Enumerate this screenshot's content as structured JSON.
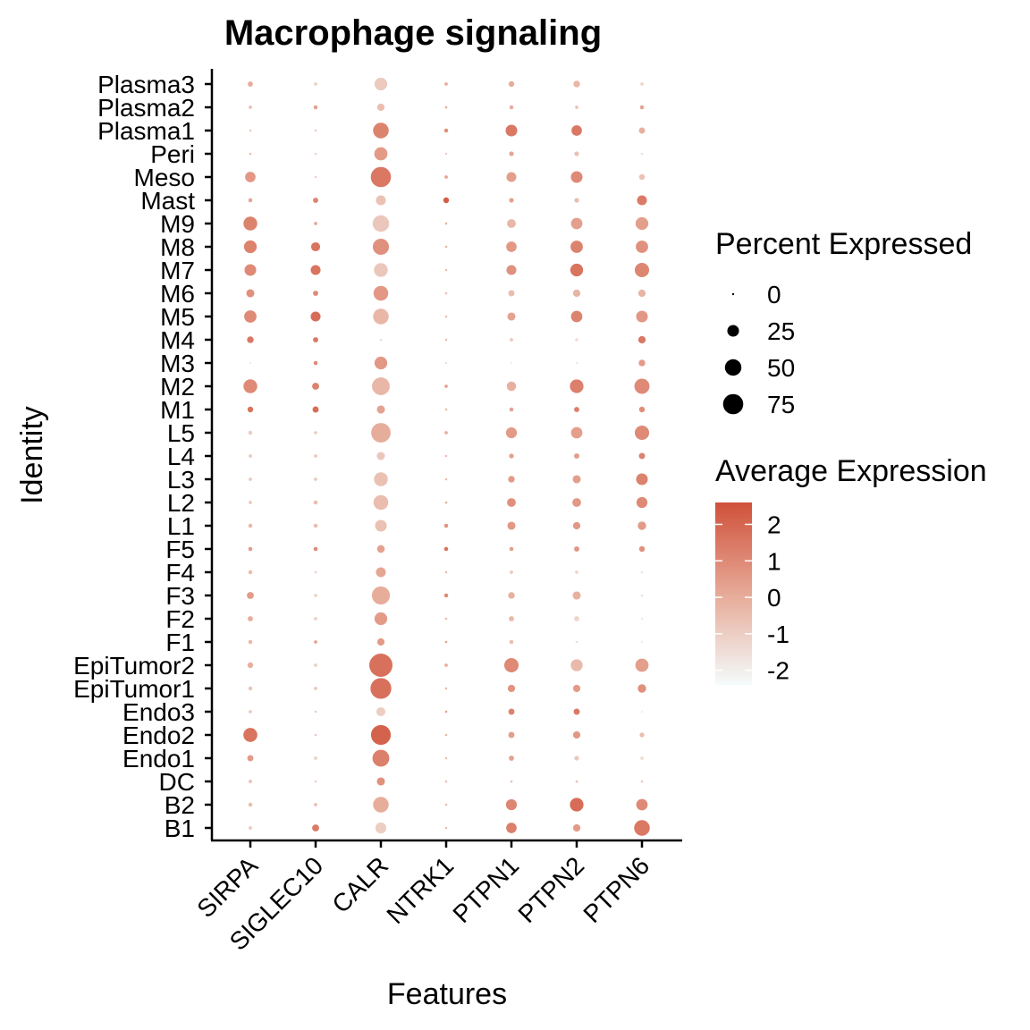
{
  "chart_data": {
    "type": "dotplot",
    "title": "Macrophage signaling",
    "xlabel": "Features",
    "ylabel": "Identity",
    "features": [
      "SIRPA",
      "SIGLEC10",
      "CALR",
      "NTRK1",
      "PTPN1",
      "PTPN2",
      "PTPN6"
    ],
    "identities": [
      "Plasma3",
      "Plasma2",
      "Plasma1",
      "Peri",
      "Meso",
      "Mast",
      "M9",
      "M8",
      "M7",
      "M6",
      "M5",
      "M4",
      "M3",
      "M2",
      "M1",
      "L5",
      "L4",
      "L3",
      "L2",
      "L1",
      "F5",
      "F4",
      "F3",
      "F2",
      "F1",
      "EpiTumor2",
      "EpiTumor1",
      "Endo3",
      "Endo2",
      "Endo1",
      "DC",
      "B2",
      "B1"
    ],
    "percent_expressed": [
      [
        5,
        2,
        30,
        2,
        6,
        8,
        2
      ],
      [
        2,
        3,
        10,
        1,
        3,
        2,
        3
      ],
      [
        1,
        1,
        45,
        3,
        25,
        20,
        7
      ],
      [
        1,
        1,
        32,
        0,
        4,
        4,
        1
      ],
      [
        20,
        1,
        75,
        2,
        18,
        25,
        6
      ],
      [
        3,
        5,
        18,
        6,
        4,
        4,
        18
      ],
      [
        35,
        2,
        50,
        1,
        14,
        24,
        30
      ],
      [
        30,
        15,
        48,
        1,
        20,
        28,
        28
      ],
      [
        25,
        18,
        35,
        1,
        18,
        30,
        38
      ],
      [
        12,
        5,
        40,
        1,
        7,
        10,
        10
      ],
      [
        28,
        18,
        45,
        1,
        12,
        24,
        25
      ],
      [
        8,
        5,
        1,
        1,
        2,
        2,
        10
      ],
      [
        1,
        3,
        30,
        0,
        0,
        1,
        8
      ],
      [
        35,
        9,
        58,
        2,
        16,
        34,
        42
      ],
      [
        6,
        7,
        12,
        1,
        3,
        5,
        6
      ],
      [
        3,
        2,
        70,
        2,
        22,
        24,
        38
      ],
      [
        2,
        2,
        12,
        1,
        4,
        5,
        7
      ],
      [
        2,
        2,
        35,
        1,
        8,
        12,
        25
      ],
      [
        2,
        3,
        40,
        1,
        14,
        14,
        22
      ],
      [
        3,
        3,
        25,
        3,
        12,
        10,
        13
      ],
      [
        3,
        3,
        11,
        3,
        3,
        5,
        6
      ],
      [
        3,
        1,
        18,
        1,
        2,
        2,
        1
      ],
      [
        9,
        2,
        60,
        3,
        8,
        12,
        1
      ],
      [
        5,
        2,
        30,
        1,
        5,
        5,
        1
      ],
      [
        3,
        2,
        10,
        1,
        3,
        1,
        1
      ],
      [
        6,
        2,
        99,
        2,
        38,
        26,
        32
      ],
      [
        3,
        2,
        80,
        1,
        10,
        10,
        13
      ],
      [
        2,
        1,
        15,
        1,
        7,
        7,
        1
      ],
      [
        36,
        1,
        72,
        1,
        7,
        10,
        4
      ],
      [
        7,
        2,
        52,
        1,
        5,
        4,
        2
      ],
      [
        2,
        1,
        12,
        1,
        1,
        1,
        1
      ],
      [
        3,
        2,
        45,
        1,
        22,
        34,
        24
      ],
      [
        2,
        9,
        22,
        1,
        20,
        10,
        45
      ]
    ],
    "average_expression": [
      [
        0.0,
        -1.0,
        -0.9,
        0.0,
        0.0,
        -0.3,
        -1.2
      ],
      [
        -0.5,
        0.3,
        -0.5,
        0.2,
        0.0,
        -0.6,
        0.3
      ],
      [
        -0.8,
        -0.8,
        1.2,
        0.8,
        1.5,
        1.5,
        -0.1
      ],
      [
        -0.5,
        -1.0,
        0.5,
        -1.0,
        0.2,
        -0.6,
        -1.5
      ],
      [
        0.6,
        -1.0,
        1.5,
        0.3,
        0.4,
        1.0,
        -0.6
      ],
      [
        0.2,
        1.2,
        -0.6,
        2.3,
        0.3,
        -0.5,
        1.4
      ],
      [
        1.2,
        0.2,
        -0.8,
        -0.2,
        -0.3,
        0.4,
        0.4
      ],
      [
        1.2,
        1.6,
        0.8,
        -0.2,
        0.6,
        1.2,
        0.8
      ],
      [
        1.0,
        1.6,
        -0.8,
        -0.5,
        0.8,
        1.6,
        1.1
      ],
      [
        0.8,
        1.0,
        0.6,
        -0.5,
        -0.5,
        -0.2,
        -0.2
      ],
      [
        1.0,
        1.8,
        -0.3,
        -0.5,
        0.3,
        1.2,
        0.6
      ],
      [
        1.5,
        1.5,
        -1.5,
        -0.5,
        -0.8,
        -1.5,
        1.5
      ],
      [
        -2.0,
        1.0,
        0.6,
        -1.5,
        -2.0,
        -1.8,
        0.5
      ],
      [
        1.0,
        1.2,
        -0.3,
        0.3,
        -0.1,
        1.3,
        1.0
      ],
      [
        1.6,
        1.8,
        0.3,
        -0.5,
        0.3,
        1.3,
        0.9
      ],
      [
        -1.0,
        -1.0,
        0.0,
        0.0,
        0.5,
        0.4,
        1.0
      ],
      [
        -0.8,
        -0.8,
        -0.8,
        -0.5,
        0.4,
        0.5,
        1.2
      ],
      [
        -0.8,
        -0.8,
        -0.6,
        -0.5,
        0.5,
        0.4,
        1.2
      ],
      [
        -0.8,
        -0.5,
        -0.5,
        0.0,
        0.8,
        0.6,
        1.0
      ],
      [
        -0.3,
        -0.5,
        -0.6,
        0.7,
        0.6,
        0.6,
        0.5
      ],
      [
        0.5,
        1.0,
        0.3,
        1.6,
        0.4,
        0.7,
        0.8
      ],
      [
        -0.5,
        -1.0,
        0.2,
        -0.5,
        -0.8,
        -1.2,
        -1.6
      ],
      [
        0.5,
        -1.2,
        0.0,
        1.0,
        -0.1,
        -0.1,
        -1.6
      ],
      [
        0.0,
        -1.0,
        0.5,
        -0.3,
        -0.4,
        -1.2,
        -1.8
      ],
      [
        -0.3,
        0.3,
        0.5,
        0.3,
        -0.5,
        -1.5,
        -2.0
      ],
      [
        -0.1,
        -1.0,
        1.7,
        0.0,
        1.0,
        -0.4,
        0.4
      ],
      [
        -0.8,
        -0.8,
        1.7,
        -0.3,
        0.7,
        0.5,
        0.8
      ],
      [
        -0.8,
        -1.0,
        -1.0,
        0.4,
        1.2,
        1.5,
        -2.0
      ],
      [
        1.6,
        -0.8,
        2.1,
        -0.3,
        0.4,
        0.6,
        -0.5
      ],
      [
        0.5,
        -1.0,
        1.3,
        -0.5,
        0.3,
        -0.8,
        -1.4
      ],
      [
        -0.5,
        -1.0,
        0.8,
        -0.5,
        -0.5,
        -0.5,
        -0.8
      ],
      [
        -0.5,
        -0.5,
        0.0,
        -0.5,
        1.1,
        1.8,
        1.0
      ],
      [
        -0.8,
        1.4,
        -1.0,
        -0.5,
        1.3,
        0.5,
        1.5
      ]
    ],
    "size_legend": {
      "title": "Percent Expressed",
      "values": [
        0,
        25,
        50,
        75
      ],
      "labels": [
        "0",
        "25",
        "50",
        "75"
      ]
    },
    "color_legend": {
      "title": "Average Expression",
      "ticks": [
        2,
        1,
        0,
        -1,
        -2
      ],
      "labels": [
        "2",
        "1",
        "0",
        "-1",
        "-2"
      ],
      "range": [
        -2.4,
        2.6
      ],
      "low_color": "#F4FBFB",
      "mid_color": "#E7AD9B",
      "high_color": "#D0513A"
    },
    "legend_position": "right"
  }
}
